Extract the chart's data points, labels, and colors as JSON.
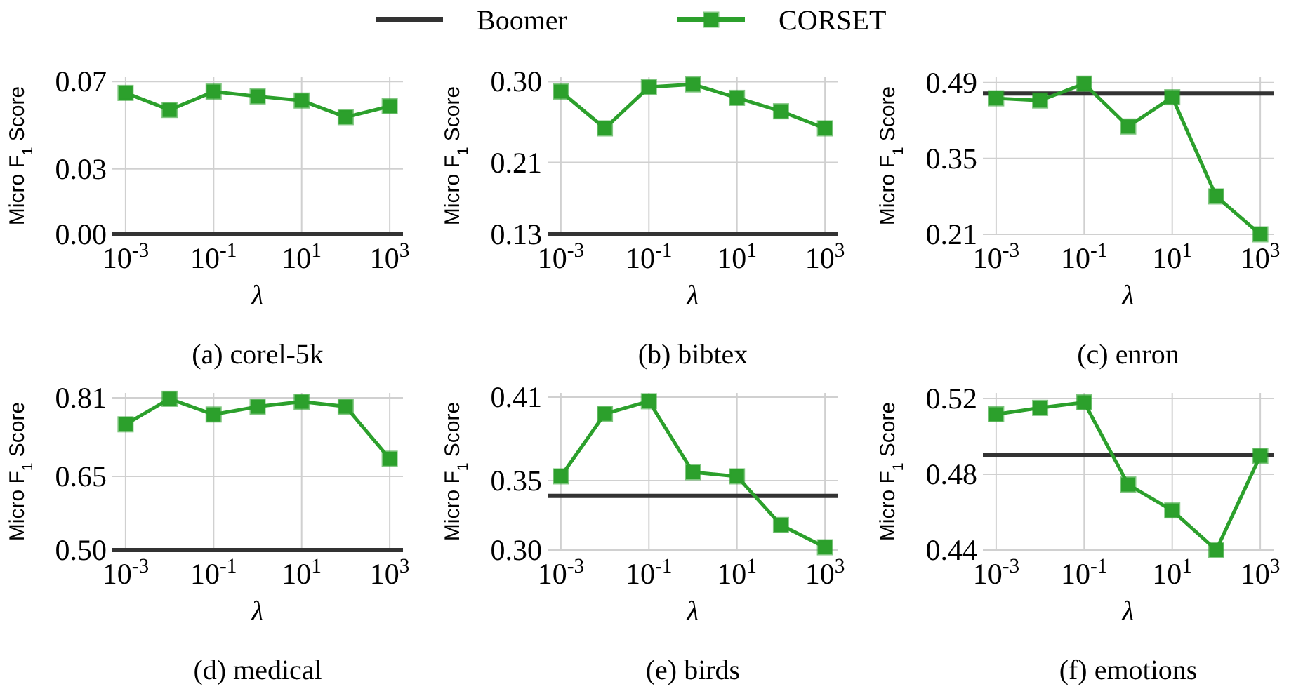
{
  "chart_data": [
    {
      "type": "line",
      "title": "(a) corel-5k",
      "xlabel": "λ",
      "ylabel": "Micro F$_{1}$ Score",
      "log": "x",
      "xlim": [
        0.0005,
        2000
      ],
      "xticks": [
        {
          "value": 0.001,
          "label": "10$^{-3}$"
        },
        {
          "value": 0.1,
          "label": "10$^{-1}$"
        },
        {
          "value": 10,
          "label": "10$^{1}$"
        },
        {
          "value": 1000,
          "label": "10$^{3}$"
        }
      ],
      "ylim": [
        0,
        0.072
      ],
      "yticks": [
        {
          "value": 0,
          "label": "0.00"
        },
        {
          "value": 0.03,
          "label": "0.03"
        },
        {
          "value": 0.07,
          "label": "0.07"
        }
      ],
      "grid": true,
      "legend": "top",
      "series": [
        {
          "name": "Boomer",
          "color": "#333333",
          "marker": "none",
          "x": [
            0.0005,
            2000
          ],
          "values": [
            0,
            0
          ]
        },
        {
          "name": "CORSET",
          "color": "#2ca02c",
          "marker": "square",
          "x": [
            0.001,
            0.01,
            0.1,
            1,
            10,
            100,
            1000
          ],
          "values": [
            0.0648,
            0.057,
            0.0654,
            0.0632,
            0.0613,
            0.0537,
            0.0587
          ]
        }
      ]
    },
    {
      "type": "line",
      "title": "(b) bibtex",
      "xlabel": "λ",
      "ylabel": "Micro F$_{1}$ Score",
      "log": "x",
      "xlim": [
        0.0005,
        2000
      ],
      "xticks": [
        {
          "value": 0.001,
          "label": "10$^{-3}$"
        },
        {
          "value": 0.1,
          "label": "10$^{-1}$"
        },
        {
          "value": 10,
          "label": "10$^{1}$"
        },
        {
          "value": 1000,
          "label": "10$^{3}$"
        }
      ],
      "ylim": [
        0.13,
        0.305
      ],
      "yticks": [
        {
          "value": 0.13,
          "label": "0.13"
        },
        {
          "value": 0.21,
          "label": "0.21"
        },
        {
          "value": 0.3,
          "label": "0.30"
        }
      ],
      "grid": true,
      "series": [
        {
          "color": "#333333",
          "marker": "none",
          "x": [
            0.0005,
            2000
          ],
          "values": [
            0.13,
            0.13
          ]
        },
        {
          "color": "#2ca02c",
          "marker": "square",
          "x": [
            0.001,
            0.01,
            0.1,
            1,
            10,
            100,
            1000
          ],
          "values": [
            0.289,
            0.248,
            0.294,
            0.297,
            0.282,
            0.267,
            0.248
          ]
        }
      ]
    },
    {
      "type": "line",
      "title": "(c) enron",
      "xlabel": "λ",
      "ylabel": "Micro F$_{1}$ Score",
      "log": "x",
      "xlim": [
        0.0005,
        2000
      ],
      "xticks": [
        {
          "value": 0.001,
          "label": "10$^{-3}$"
        },
        {
          "value": 0.1,
          "label": "10$^{-1}$"
        },
        {
          "value": 10,
          "label": "10$^{1}$"
        },
        {
          "value": 1000,
          "label": "10$^{3}$"
        }
      ],
      "ylim": [
        0.21,
        0.5
      ],
      "yticks": [
        0.21,
        0.35,
        0.49
      ],
      "grid": true,
      "series": [
        {
          "color": "#333333",
          "marker": "none",
          "x": [
            0.0005,
            2000
          ],
          "values": [
            0.47,
            0.47
          ]
        },
        {
          "color": "#2ca02c",
          "marker": "square",
          "x": [
            0.001,
            0.01,
            0.1,
            1,
            10,
            100,
            1000
          ],
          "values": [
            0.461,
            0.457,
            0.488,
            0.409,
            0.463,
            0.28,
            0.21
          ]
        }
      ]
    },
    {
      "type": "line",
      "title": "(d) medical",
      "xlabel": "λ",
      "ylabel": "Micro F$_{1}$ Score",
      "log": "x",
      "xlim": [
        0.0005,
        2000
      ],
      "xticks": [
        {
          "value": 0.001,
          "label": "10$^{-3}$"
        },
        {
          "value": 0.1,
          "label": "10$^{-1}$"
        },
        {
          "value": 10,
          "label": "10$^{1}$"
        },
        {
          "value": 1000,
          "label": "10$^{3}$"
        }
      ],
      "ylim": [
        0.5,
        0.82
      ],
      "yticks": [
        {
          "value": 0.5,
          "label": "0.50"
        },
        0.65,
        0.81
      ],
      "grid": true,
      "series": [
        {
          "color": "#333333",
          "marker": "none",
          "x": [
            0.0005,
            2000
          ],
          "values": [
            0.5,
            0.5
          ]
        },
        {
          "color": "#2ca02c",
          "marker": "square",
          "x": [
            0.001,
            0.01,
            0.1,
            1,
            10,
            100,
            1000
          ],
          "values": [
            0.756,
            0.808,
            0.776,
            0.792,
            0.802,
            0.792,
            0.686
          ]
        }
      ]
    },
    {
      "type": "line",
      "title": "(e) birds",
      "xlabel": "λ",
      "ylabel": "Micro F$_{1}$ Score",
      "log": "x",
      "xlim": [
        0.0005,
        2000
      ],
      "xticks": [
        {
          "value": 0.001,
          "label": "10$^{-3}$"
        },
        {
          "value": 0.1,
          "label": "10$^{-1}$"
        },
        {
          "value": 10,
          "label": "10$^{1}$"
        },
        {
          "value": 1000,
          "label": "10$^{3}$"
        }
      ],
      "ylim": [
        0.3,
        0.413
      ],
      "yticks": [
        {
          "value": 0.3,
          "label": "0.30"
        },
        0.35,
        0.41
      ],
      "grid": true,
      "series": [
        {
          "color": "#333333",
          "marker": "none",
          "x": [
            0.0005,
            2000
          ],
          "values": [
            0.339,
            0.339
          ]
        },
        {
          "color": "#2ca02c",
          "marker": "square",
          "x": [
            0.001,
            0.01,
            0.1,
            1,
            10,
            100,
            1000
          ],
          "values": [
            0.353,
            0.398,
            0.407,
            0.356,
            0.353,
            0.318,
            0.302
          ]
        }
      ]
    },
    {
      "type": "line",
      "title": "(f) emotions",
      "xlabel": "λ",
      "ylabel": "Micro F$_{1}$ Score",
      "log": "x",
      "xlim": [
        0.0005,
        2000
      ],
      "xticks": [
        {
          "value": 0.001,
          "label": "10$^{-3}$"
        },
        {
          "value": 0.1,
          "label": "10$^{-1}$"
        },
        {
          "value": 10,
          "label": "10$^{1}$"
        },
        {
          "value": 1000,
          "label": "10$^{3}$"
        }
      ],
      "ylim": [
        0.44,
        0.523
      ],
      "yticks": [
        0.44,
        0.48,
        0.52
      ],
      "grid": true,
      "series": [
        {
          "color": "#333333",
          "marker": "none",
          "x": [
            0.0005,
            2000
          ],
          "values": [
            0.49,
            0.49
          ]
        },
        {
          "color": "#2ca02c",
          "marker": "square",
          "x": [
            0.001,
            0.01,
            0.1,
            1,
            10,
            100,
            1000
          ],
          "values": [
            0.5117,
            0.5151,
            0.518,
            0.4746,
            0.4609,
            0.44,
            0.4898
          ]
        }
      ]
    }
  ]
}
